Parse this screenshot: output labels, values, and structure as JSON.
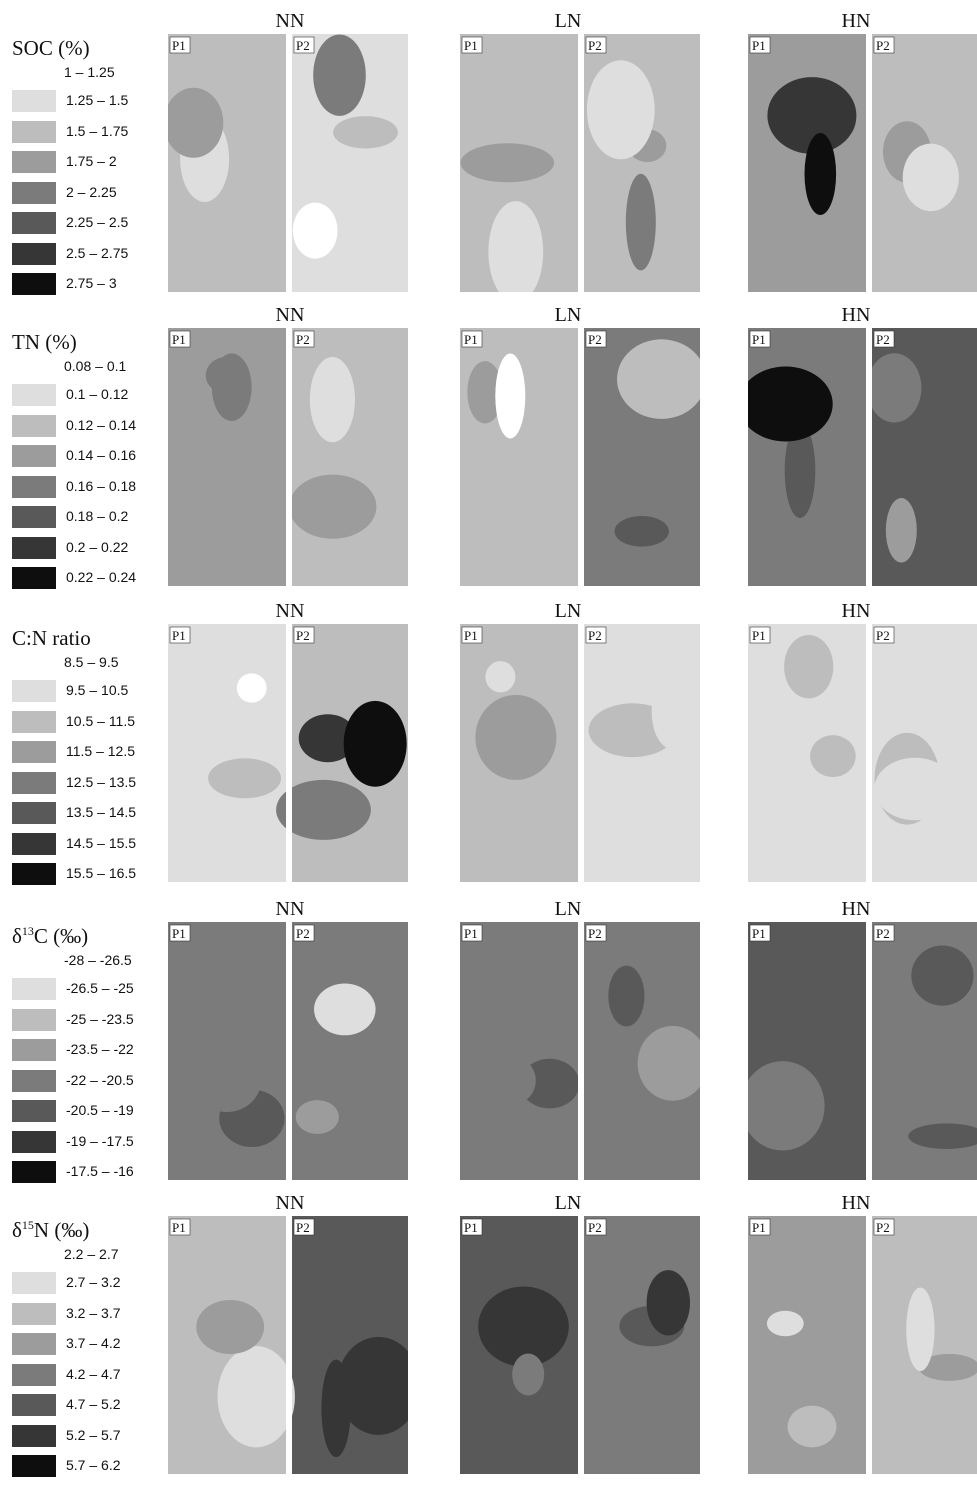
{
  "chart_data": {
    "type": "heatmap",
    "title": "",
    "treatments": [
      "NN",
      "LN",
      "HN"
    ],
    "plots": [
      "P1",
      "P2"
    ],
    "rows": [
      {
        "variable": "SOC",
        "title_main": "SOC (%)",
        "title_sup": "",
        "title_after": "",
        "ranges": [
          "1 – 1.25",
          "1.25 – 1.5",
          "1.5 – 1.75",
          "1.75 – 2",
          "2 – 2.25",
          "2.25 – 2.5",
          "2.5 – 2.75",
          "2.75 – 3"
        ],
        "colors": [
          "#ffffff",
          "#dedede",
          "#bdbdbd",
          "#9c9c9c",
          "#7b7b7b",
          "#595959",
          "#363636",
          "#0e0e0e"
        ],
        "panels": [
          {
            "treatment": "NN",
            "p1_base": 2,
            "p2_base": 1,
            "p1_blobs": [
              1,
              3
            ],
            "p2_blobs": [
              2,
              4,
              0
            ]
          },
          {
            "treatment": "LN",
            "p1_base": 2,
            "p2_base": 2,
            "p1_blobs": [
              1,
              3
            ],
            "p2_blobs": [
              3,
              4,
              1
            ]
          },
          {
            "treatment": "HN",
            "p1_base": 3,
            "p2_base": 2,
            "p1_blobs": [
              4,
              6,
              7
            ],
            "p2_blobs": [
              3,
              1
            ]
          }
        ]
      },
      {
        "variable": "TN",
        "title_main": "TN (%)",
        "title_sup": "",
        "title_after": "",
        "ranges": [
          "0.08 – 0.1",
          "0.1 – 0.12",
          "0.12 – 0.14",
          "0.14 – 0.16",
          "0.16 – 0.18",
          "0.18 – 0.2",
          "0.2 – 0.22",
          "0.22 – 0.24"
        ],
        "colors": [
          "#ffffff",
          "#dedede",
          "#bdbdbd",
          "#9c9c9c",
          "#7b7b7b",
          "#595959",
          "#363636",
          "#0e0e0e"
        ],
        "panels": [
          {
            "treatment": "NN",
            "p1_base": 3,
            "p2_base": 2,
            "p1_blobs": [
              4,
              4
            ],
            "p2_blobs": [
              3,
              1
            ]
          },
          {
            "treatment": "LN",
            "p1_base": 2,
            "p2_base": 4,
            "p1_blobs": [
              3,
              0
            ],
            "p2_blobs": [
              5,
              2
            ]
          },
          {
            "treatment": "HN",
            "p1_base": 4,
            "p2_base": 5,
            "p1_blobs": [
              5,
              7
            ],
            "p2_blobs": [
              4,
              3
            ]
          }
        ]
      },
      {
        "variable": "C:N",
        "title_main": "C:N ratio",
        "title_sup": "",
        "title_after": "",
        "ranges": [
          "8.5 – 9.5",
          "9.5 – 10.5",
          "10.5 – 11.5",
          "11.5 – 12.5",
          "12.5 – 13.5",
          "13.5 – 14.5",
          "14.5 – 15.5",
          "15.5 – 16.5"
        ],
        "colors": [
          "#ffffff",
          "#dedede",
          "#bdbdbd",
          "#9c9c9c",
          "#7b7b7b",
          "#595959",
          "#363636",
          "#0e0e0e"
        ],
        "panels": [
          {
            "treatment": "NN",
            "p1_base": 1,
            "p2_base": 2,
            "p1_blobs": [
              0,
              2
            ],
            "p2_blobs": [
              4,
              6,
              7
            ]
          },
          {
            "treatment": "LN",
            "p1_base": 2,
            "p2_base": 1,
            "p1_blobs": [
              1,
              3
            ],
            "p2_blobs": [
              2,
              1
            ]
          },
          {
            "treatment": "HN",
            "p1_base": 1,
            "p2_base": 1,
            "p1_blobs": [
              2,
              2
            ],
            "p2_blobs": [
              2,
              1
            ]
          }
        ]
      },
      {
        "variable": "d13C",
        "title_main": "δ",
        "title_sup": "13",
        "title_after": "C (‰)",
        "ranges": [
          "-28 – -26.5",
          "-26.5 – -25",
          "-25 – -23.5",
          "-23.5 – -22",
          "-22 – -20.5",
          "-20.5 – -19",
          "-19 – -17.5",
          "-17.5 – -16"
        ],
        "colors": [
          "#ffffff",
          "#dedede",
          "#bdbdbd",
          "#9c9c9c",
          "#7b7b7b",
          "#595959",
          "#363636",
          "#0e0e0e"
        ],
        "panels": [
          {
            "treatment": "NN",
            "p1_base": 4,
            "p2_base": 4,
            "p1_blobs": [
              5,
              4
            ],
            "p2_blobs": [
              3,
              1
            ]
          },
          {
            "treatment": "LN",
            "p1_base": 4,
            "p2_base": 4,
            "p1_blobs": [
              5,
              4
            ],
            "p2_blobs": [
              5,
              3
            ]
          },
          {
            "treatment": "HN",
            "p1_base": 5,
            "p2_base": 4,
            "p1_blobs": [
              4,
              5
            ],
            "p2_blobs": [
              5,
              5
            ]
          }
        ]
      },
      {
        "variable": "d15N",
        "title_main": "δ",
        "title_sup": "15",
        "title_after": "N (‰)",
        "ranges": [
          "2.2 – 2.7",
          "2.7 – 3.2",
          "3.2 – 3.7",
          "3.7 – 4.2",
          "4.2 – 4.7",
          "4.7 – 5.2",
          "5.2 – 5.7",
          "5.7 – 6.2"
        ],
        "colors": [
          "#ffffff",
          "#dedede",
          "#bdbdbd",
          "#9c9c9c",
          "#7b7b7b",
          "#595959",
          "#363636",
          "#0e0e0e"
        ],
        "panels": [
          {
            "treatment": "NN",
            "p1_base": 2,
            "p2_base": 5,
            "p1_blobs": [
              1,
              3
            ],
            "p2_blobs": [
              6,
              6
            ]
          },
          {
            "treatment": "LN",
            "p1_base": 5,
            "p2_base": 4,
            "p1_blobs": [
              6,
              4
            ],
            "p2_blobs": [
              5,
              6
            ]
          },
          {
            "treatment": "HN",
            "p1_base": 3,
            "p2_base": 2,
            "p1_blobs": [
              2,
              1
            ],
            "p2_blobs": [
              3,
              1
            ]
          }
        ]
      }
    ]
  }
}
